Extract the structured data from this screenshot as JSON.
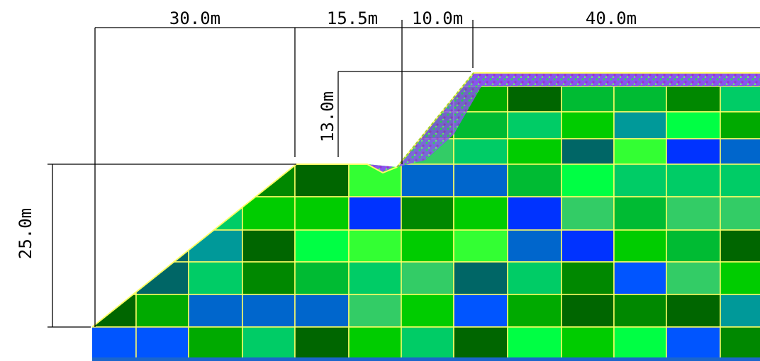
{
  "dimensions": {
    "top_segments": [
      "30.0m",
      "15.5m",
      "10.0m",
      "40.0m"
    ],
    "bench_height": "13.0m",
    "total_height": "25.0m"
  },
  "colors": {
    "palette": [
      "#006600",
      "#008800",
      "#00aa00",
      "#00cc00",
      "#00ff44",
      "#33ff33",
      "#00cc66",
      "#009999",
      "#006666",
      "#0066cc",
      "#0033ff",
      "#0055ff",
      "#33cc66",
      "#00bb33"
    ],
    "grid_line": "#ffff66",
    "top_band": "#9966ff",
    "base_band": "#1a66cc"
  }
}
